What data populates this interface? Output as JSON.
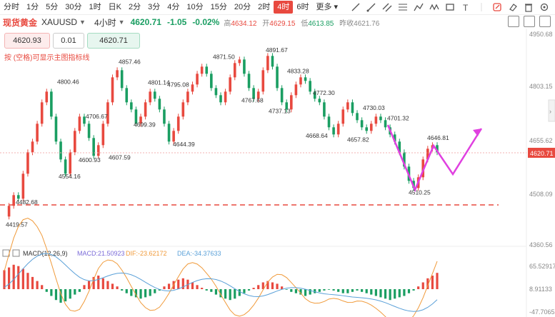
{
  "toolbar": {
    "timeframes": [
      "分时",
      "1分",
      "5分",
      "30分",
      "1时",
      "日K",
      "2分",
      "3分",
      "4分",
      "10分",
      "15分",
      "20分",
      "2时",
      "4时",
      "6时",
      "更多"
    ],
    "active_index": 13
  },
  "header": {
    "name": "现货黄金",
    "symbol": "XAUUSD",
    "period": "4小时",
    "price": "4620.71",
    "change": "-1.05",
    "change_pct": "-0.02%",
    "high_label": "高",
    "high": "4634.12",
    "open_label": "开",
    "open": "4629.15",
    "low_label": "低",
    "low": "4613.85",
    "prev_label": "昨收",
    "prev": "4621.76"
  },
  "trade": {
    "sell_price": "4620.93",
    "lot": "0.01",
    "buy_price": "4620.71"
  },
  "hint": "按 (空格)可显示主图指标线",
  "price_axis": [
    "4950.68",
    "4803.15",
    "4655.62",
    "4508.09",
    "4360.56"
  ],
  "price_tag": "4620.71",
  "macd": {
    "title": "MACD(12,26,9)",
    "macd_label": "MACD:21.50923",
    "dif_label": "DIF:-23.62172",
    "dea_label": "DEA:-34.37633",
    "axis": [
      "65.52917",
      "8.91133",
      "-47.70652"
    ]
  },
  "annotations": [
    "4800.46",
    "4857.46",
    "4871.50",
    "4891.67",
    "4706.67",
    "4801.14",
    "4795.08",
    "4833.28",
    "4772.30",
    "4730.03",
    "4701.32",
    "4646.81",
    "4699.39",
    "4644.39",
    "4767.68",
    "4737.13",
    "4668.64",
    "4657.82",
    "4510.25",
    "4600.93",
    "4607.59",
    "4554.16",
    "4482.68",
    "4419.57"
  ],
  "colors": {
    "up": "#e8493f",
    "down": "#1a9e62",
    "accent": "#e8493f",
    "pattern": "#e040e0"
  }
}
